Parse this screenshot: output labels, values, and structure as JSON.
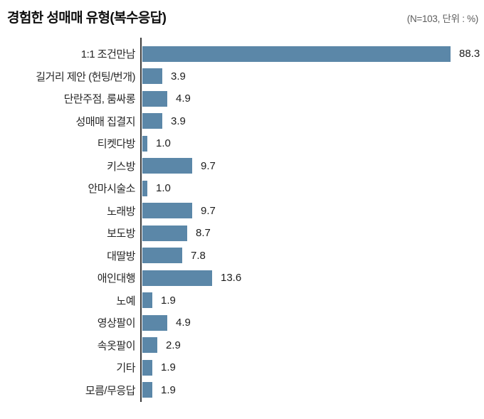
{
  "header": {
    "title": "경험한 성매매 유형(복수응답)",
    "meta": "(N=103, 단위 : %)"
  },
  "chart_data": {
    "type": "bar",
    "orientation": "horizontal",
    "title": "경험한 성매매 유형(복수응답)",
    "sample_note": "(N=103, 단위 : %)",
    "n": 103,
    "unit": "%",
    "categories": [
      "1:1 조건만남",
      "길거리 제안 (헌팅/번개)",
      "단란주점, 룸싸롱",
      "성매매 집결지",
      "티켓다방",
      "키스방",
      "안마시술소",
      "노래방",
      "보도방",
      "대딸방",
      "애인대행",
      "노예",
      "영상팔이",
      "속옷팔이",
      "기타",
      "모름/무응답"
    ],
    "values": [
      88.3,
      3.9,
      4.9,
      3.9,
      1.0,
      9.7,
      1.0,
      9.7,
      8.7,
      7.8,
      13.6,
      1.9,
      4.9,
      2.9,
      1.9,
      1.9
    ],
    "bar_color": "#5b87a8",
    "axis_color": "#3c3c3c",
    "value_labels_visible": true,
    "grid": "off",
    "legend": "none",
    "xlim": [
      0,
      90
    ]
  }
}
